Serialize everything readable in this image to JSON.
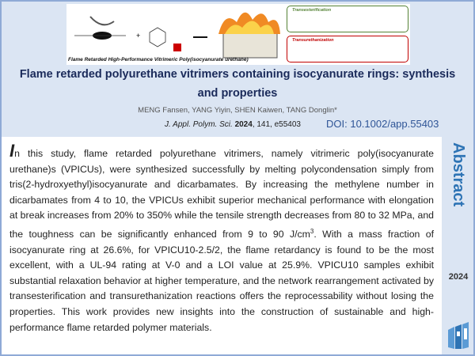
{
  "graphic": {
    "caption": "Flame Retarded High-Performance Vitrimeric Poly(isocyanurate urethane)",
    "box1_label": "Transesterification",
    "box2_label": "Transurethanization",
    "box1_color": "#548235",
    "box2_color": "#c00000"
  },
  "title": "Flame retarded polyurethane vitrimers containing isocyanurate rings: synthesis and properties",
  "authors": "MENG Fansen, YANG Yiyin, SHEN Kaiwen, TANG Donglin*",
  "citation": {
    "journal": "J. Appl. Polym. Sci.",
    "year": "2024",
    "rest": ", 141, e55403"
  },
  "doi": "DOI: 10.1002/app.55403",
  "abstract": {
    "dropcap": "I",
    "text_before_sup": "n this study, flame retarded polyurethane vitrimers, namely vitrimeric poly(isocyanurate urethane)s (VPICUs), were synthesized successfully by melting polycondensation simply from tris(2-hydroxyethyl)isocyanurate and dicarbamates. By increasing the methylene number in dicarbamates from 4 to 10, the VPICUs exhibit superior mechanical performance with elongation at break increases from 20% to 350% while the tensile strength decreases from 80 to 32 MPa, and the toughness can be significantly enhanced from 9 to 90 J/cm",
    "sup": "3",
    "text_after_sup": ". With a mass fraction of isocyanurate ring at 26.6%, for VPICU10-2.5/2, the flame retardancy is found to be the most excellent, with a UL-94 rating at V-0 and a LOI value at 25.9%. VPICU10 samples exhibit substantial relaxation behavior at higher temperature, and the network rearrangement activated by transesterification and transurethanization reactions offers the reprocessability without losing the properties. This work provides new insights into the construction of sustainable and high-performance flame retarded polymer materials."
  },
  "sidebar": {
    "label": "Abstract",
    "year": "2024",
    "logo_icon": "publisher-logo-icon"
  }
}
